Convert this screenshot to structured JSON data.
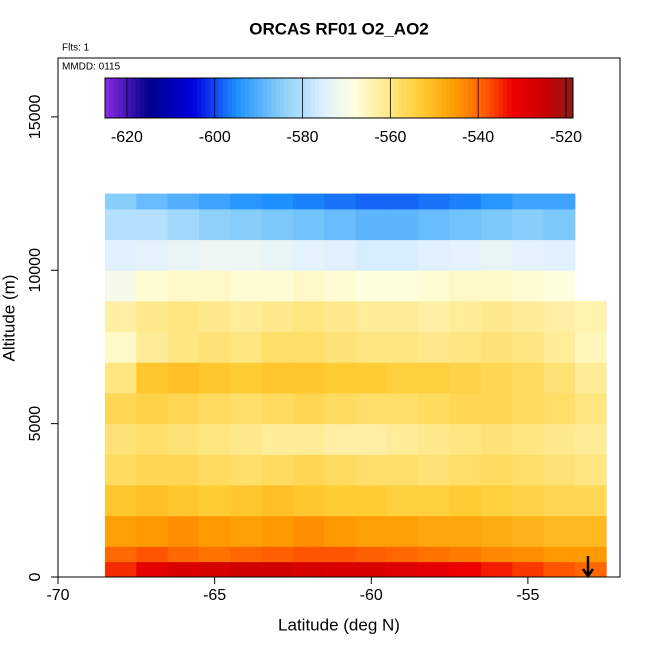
{
  "chart_data": {
    "type": "heatmap",
    "title": "ORCAS RF01 O2_AO2",
    "annotations": [
      "Flts: 1",
      "MMDD: 0115"
    ],
    "x_label": "Latitude (deg N)",
    "y_label": "Altitude (m)",
    "xlim": [
      -70,
      -52.06
    ],
    "ylim": [
      0,
      16920
    ],
    "xticks": [
      -70,
      -65,
      -60,
      -55
    ],
    "yticks": [
      0,
      5000,
      10000,
      15000
    ],
    "x_edges": [
      -68.5,
      -67.5,
      -66.5,
      -65.5,
      -64.5,
      -63.5,
      -62.5,
      -61.5,
      -60.5,
      -59.5,
      -58.5,
      -57.5,
      -56.5,
      -55.5,
      -54.5,
      -53.5,
      -52.5
    ],
    "y_edges": [
      0,
      500,
      1000,
      2000,
      3000,
      4000,
      5000,
      6000,
      7000,
      8000,
      9000,
      10000,
      11000,
      12000,
      12500
    ],
    "z": [
      [
        -535,
        -530,
        -528,
        -527,
        -526,
        -526,
        -527,
        -528,
        -528,
        -529,
        -530,
        -532,
        -534,
        -536,
        -538,
        -540
      ],
      [
        -540,
        -538,
        -540,
        -541,
        -540,
        -539,
        -538,
        -538,
        -539,
        -540,
        -541,
        -542,
        -543,
        -544,
        -545,
        -545
      ],
      [
        -546,
        -545,
        -544,
        -545,
        -546,
        -545,
        -544,
        -545,
        -546,
        -546,
        -547,
        -547,
        -548,
        -549,
        -550,
        -550
      ],
      [
        -552,
        -551,
        -552,
        -553,
        -552,
        -551,
        -552,
        -553,
        -553,
        -554,
        -554,
        -553,
        -554,
        -555,
        -556,
        -556
      ],
      [
        -557,
        -556,
        -556,
        -557,
        -558,
        -557,
        -556,
        -557,
        -558,
        -558,
        -559,
        -558,
        -557,
        -558,
        -559,
        -560
      ],
      [
        -559,
        -558,
        -559,
        -560,
        -561,
        -562,
        -562,
        -563,
        -563,
        -562,
        -561,
        -560,
        -559,
        -560,
        -561,
        -562
      ],
      [
        -556,
        -555,
        -556,
        -557,
        -558,
        -557,
        -556,
        -557,
        -558,
        -558,
        -557,
        -556,
        -556,
        -557,
        -558,
        -560
      ],
      [
        -560,
        -552,
        -551,
        -552,
        -553,
        -552,
        -552,
        -553,
        -553,
        -554,
        -554,
        -555,
        -556,
        -557,
        -559,
        -562
      ],
      [
        -566,
        -562,
        -560,
        -559,
        -560,
        -558,
        -558,
        -559,
        -560,
        -560,
        -561,
        -560,
        -559,
        -560,
        -562,
        -565
      ],
      [
        -563,
        -561,
        -560,
        -561,
        -562,
        -561,
        -560,
        -561,
        -562,
        -562,
        -563,
        -562,
        -561,
        -562,
        -563,
        -564
      ],
      [
        -570,
        -567,
        -566,
        -566,
        -567,
        -567,
        -566,
        -567,
        -568,
        -568,
        -567,
        -566,
        -566,
        -567,
        -568,
        null
      ],
      [
        -575,
        -574,
        -573,
        -572,
        -572,
        -573,
        -574,
        -575,
        -576,
        -576,
        -575,
        -574,
        -573,
        -574,
        -575,
        null
      ],
      [
        -580,
        -580,
        -582,
        -584,
        -585,
        -586,
        -587,
        -588,
        -589,
        -589,
        -588,
        -587,
        -586,
        -585,
        -586,
        null
      ],
      [
        -585,
        -588,
        -590,
        -592,
        -594,
        -595,
        -596,
        -597,
        -598,
        -598,
        -597,
        -596,
        -594,
        -592,
        -592,
        null
      ]
    ],
    "zlim": [
      -625,
      -518.4
    ],
    "zticks": [
      -620,
      -600,
      -580,
      -560,
      -540,
      -520
    ],
    "color_stops": [
      -625,
      -615,
      -605,
      -595,
      -585,
      -575,
      -568,
      -560,
      -553,
      -545,
      -538,
      -532,
      -525,
      -518.4
    ],
    "colors": [
      "#8a2be2",
      "#00008b",
      "#0000e0",
      "#1e90ff",
      "#87cefa",
      "#e0f0ff",
      "#ffffe0",
      "#ffe680",
      "#ffcc33",
      "#ff9900",
      "#ff5500",
      "#ee0000",
      "#cc0000",
      "#8b1a1a"
    ]
  }
}
